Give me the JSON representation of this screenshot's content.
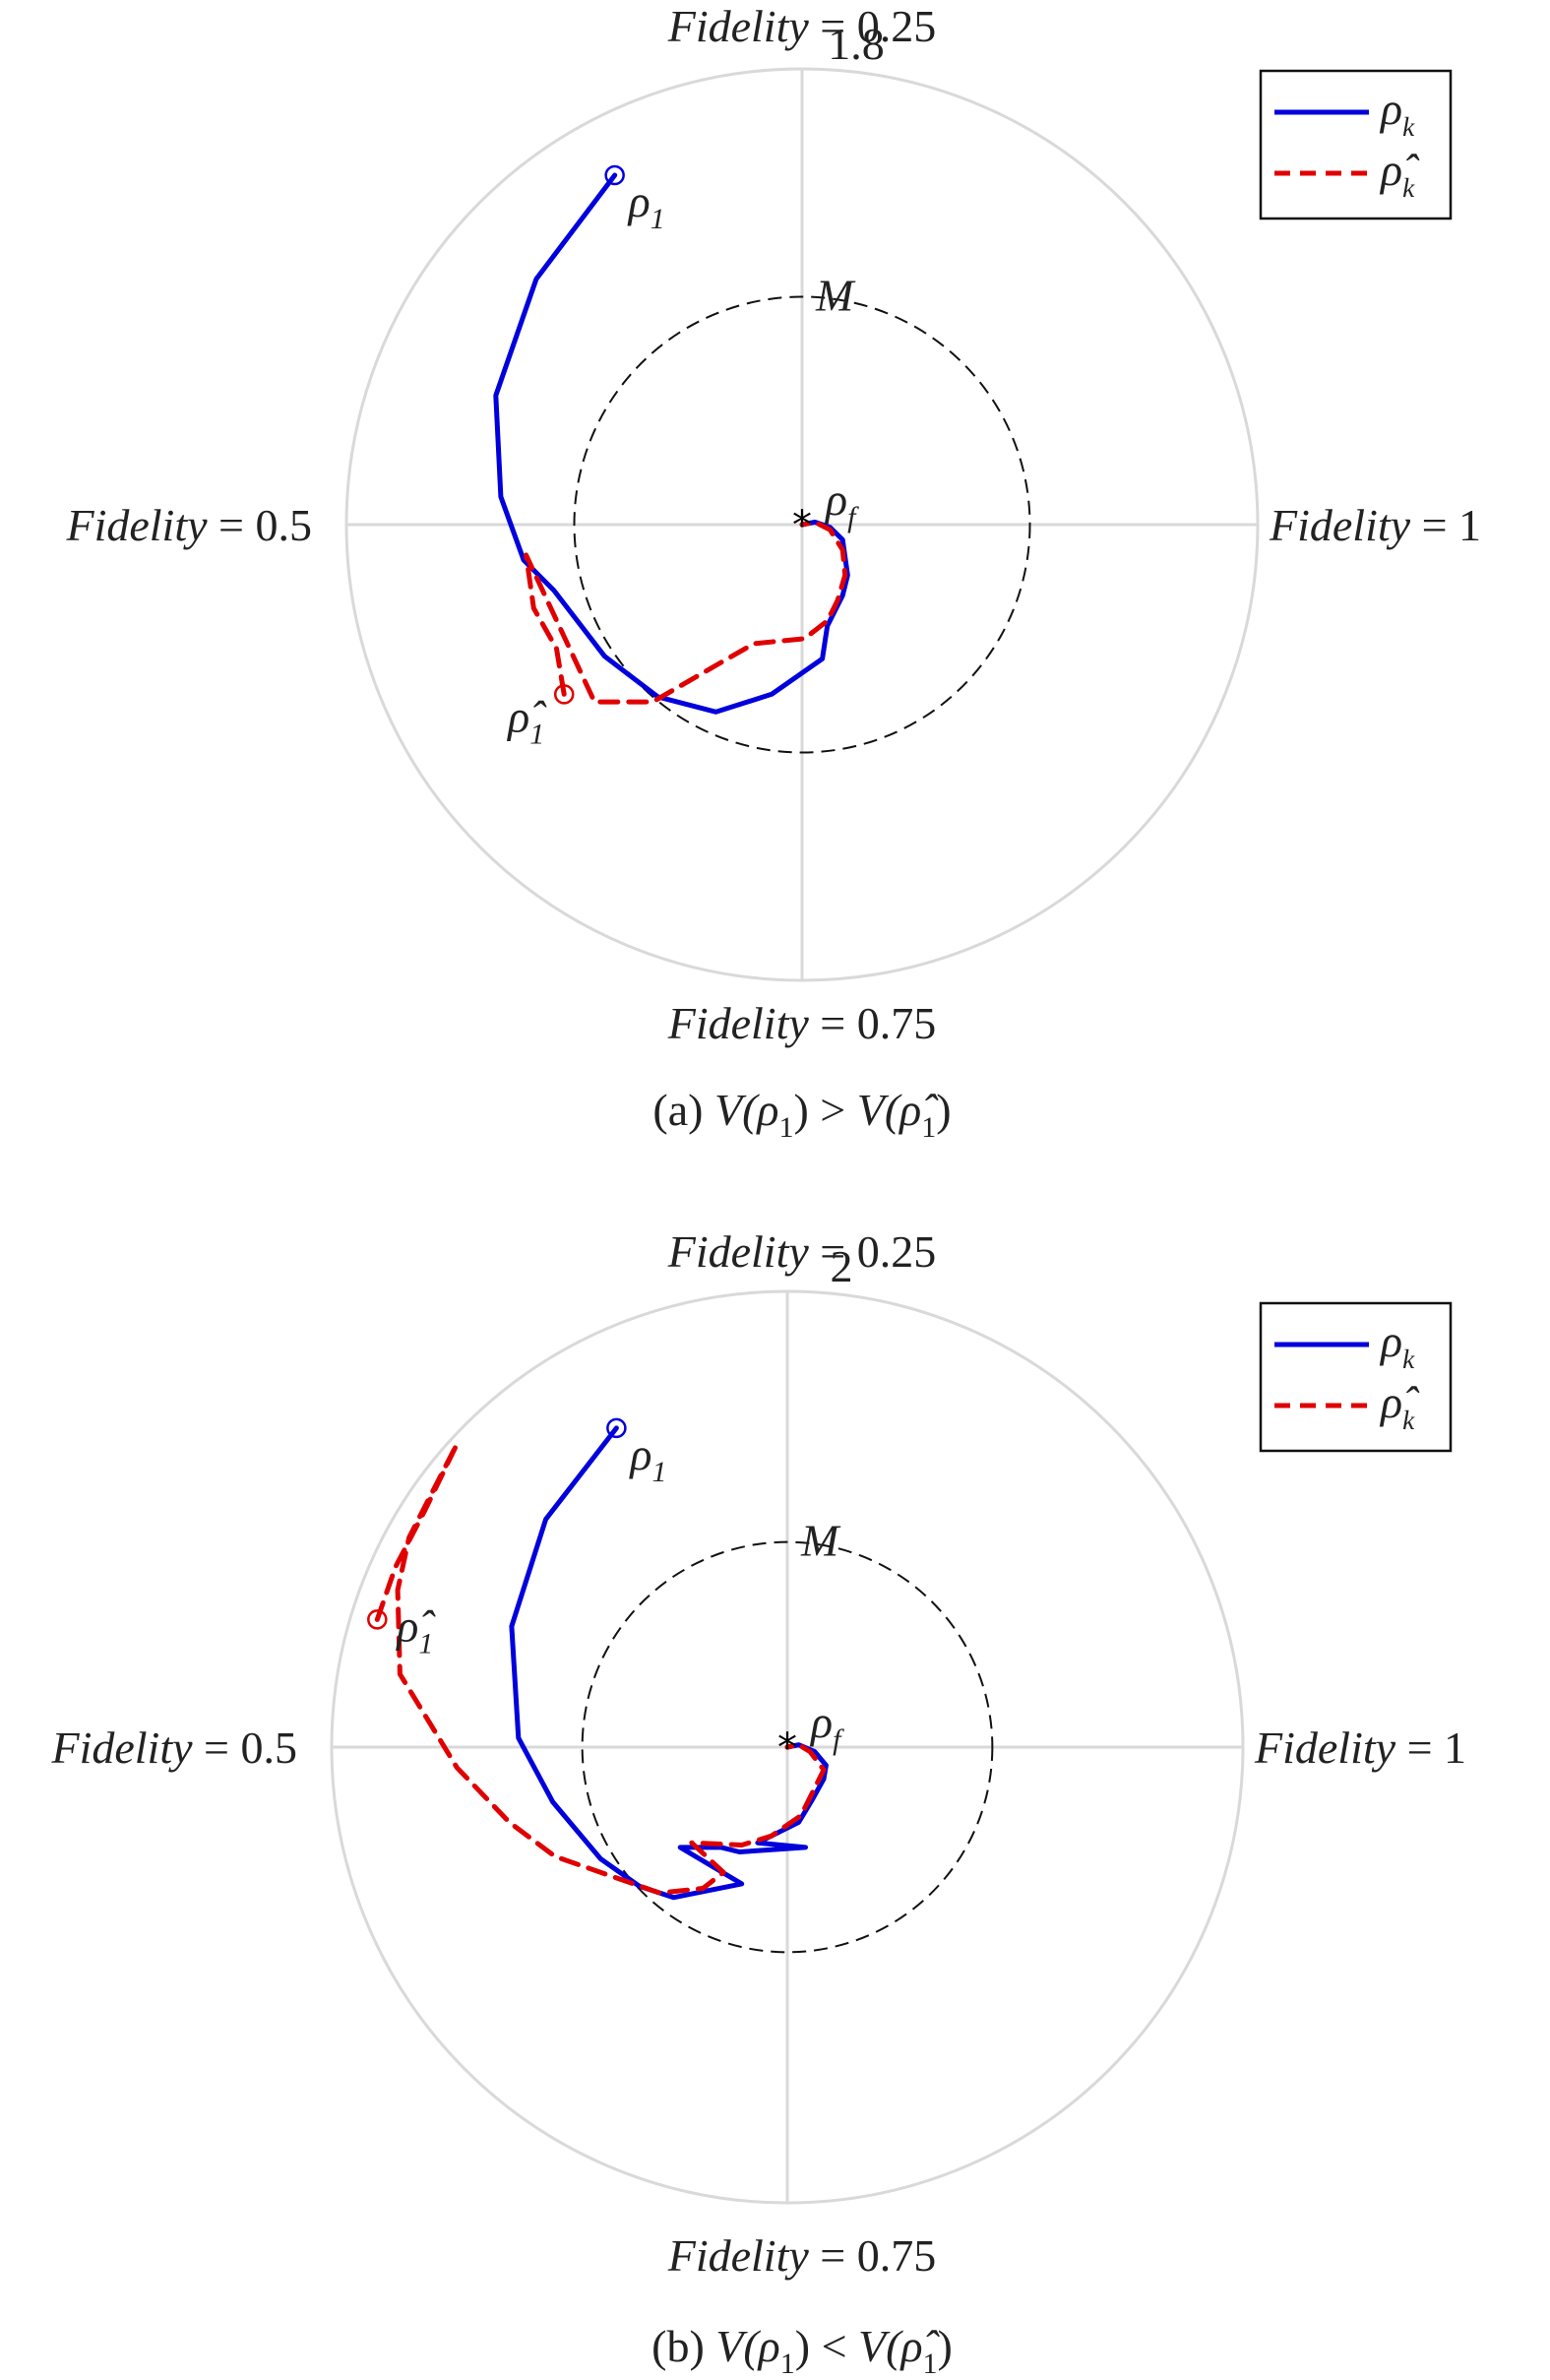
{
  "chart_data": [
    {
      "type": "polar-line",
      "panel_caption": "(a) V(ρ1) > V(ρ̂1)",
      "caption_parts": {
        "pre": "(a) ",
        "lhs": "V(ρ",
        "lhs_sub": "1",
        "mid": ") > ",
        "rhs": "V(ρ̂",
        "rhs_sub": "1",
        "end": ")"
      },
      "radial_max_label": "1.8",
      "radial_max": 1.8,
      "angular_labels": {
        "top": {
          "name": "Fidelity",
          "eq": " = 0.25"
        },
        "left": {
          "name": "Fidelity",
          "eq": " = 0.5"
        },
        "right": {
          "name": "Fidelity",
          "eq": " = 1"
        },
        "bottom": {
          "name": "Fidelity",
          "eq": " = 0.75"
        }
      },
      "M_label": "M",
      "M_radius": 0.9,
      "rho_f_label": {
        "base": "ρ",
        "sub": "f"
      },
      "start_labels": {
        "rho": {
          "base": "ρ",
          "sub": "1"
        },
        "rho_hat": {
          "base": "ρ̂",
          "sub": "1"
        }
      },
      "legend": [
        {
          "base": "ρ",
          "sub": "k",
          "color": "#0000dd",
          "style": "solid"
        },
        {
          "base": "ρ̂",
          "sub": "k",
          "color": "#e00000",
          "style": "dashed"
        }
      ],
      "series": [
        {
          "id": "rho_k",
          "color": "#0000dd",
          "x": [
            -0.74,
            -1.05,
            -1.21,
            -1.19,
            -1.1,
            -0.98,
            -0.78,
            -0.57,
            -0.34,
            -0.12,
            0.08,
            0.1,
            0.16,
            0.18,
            0.16,
            0.11,
            0.05,
            0.0
          ],
          "y": [
            1.38,
            0.97,
            0.51,
            0.11,
            -0.14,
            -0.26,
            -0.52,
            -0.68,
            -0.74,
            -0.67,
            -0.53,
            -0.4,
            -0.28,
            -0.2,
            -0.06,
            -0.01,
            0.01,
            0.0
          ]
        },
        {
          "id": "rho_hat_k",
          "color": "#e00000",
          "x": [
            -0.94,
            -0.97,
            -1.06,
            -1.09,
            -0.82,
            -0.59,
            -0.33,
            -0.19,
            0.01,
            0.1,
            0.14,
            0.17,
            0.16,
            0.11,
            0.05,
            0.0
          ],
          "y": [
            -0.67,
            -0.49,
            -0.33,
            -0.12,
            -0.7,
            -0.7,
            -0.55,
            -0.47,
            -0.45,
            -0.38,
            -0.3,
            -0.2,
            -0.1,
            -0.02,
            0.01,
            0.0
          ]
        }
      ]
    },
    {
      "type": "polar-line",
      "panel_caption": "(b) V(ρ1) < V(ρ̂1)",
      "caption_parts": {
        "pre": "(b) ",
        "lhs": "V(ρ",
        "lhs_sub": "1",
        "mid": ") < ",
        "rhs": "V(ρ̂",
        "rhs_sub": "1",
        "end": ")"
      },
      "radial_max_label": "2",
      "radial_max": 2.0,
      "angular_labels": {
        "top": {
          "name": "Fidelity",
          "eq": " = 0.25"
        },
        "left": {
          "name": "Fidelity",
          "eq": " = 0.5"
        },
        "right": {
          "name": "Fidelity",
          "eq": " = 1"
        },
        "bottom": {
          "name": "Fidelity",
          "eq": " = 0.75"
        }
      },
      "M_label": "M",
      "M_radius": 0.9,
      "rho_f_label": {
        "base": "ρ",
        "sub": "f"
      },
      "start_labels": {
        "rho": {
          "base": "ρ",
          "sub": "1"
        },
        "rho_hat": {
          "base": "ρ̂",
          "sub": "1"
        }
      },
      "legend": [
        {
          "base": "ρ",
          "sub": "k",
          "color": "#0000dd",
          "style": "solid"
        },
        {
          "base": "ρ̂",
          "sub": "k",
          "color": "#e00000",
          "style": "dashed"
        }
      ],
      "series": [
        {
          "id": "rho_k",
          "color": "#0000dd",
          "x": [
            -0.75,
            -1.06,
            -1.21,
            -1.18,
            -1.03,
            -0.82,
            -0.65,
            -0.5,
            -0.2,
            -0.47,
            -0.29,
            -0.21,
            0.08,
            -0.13,
            0.05,
            0.11,
            0.16,
            0.17,
            0.12,
            0.05,
            0.0
          ],
          "y": [
            1.4,
            1.0,
            0.53,
            0.04,
            -0.24,
            -0.49,
            -0.61,
            -0.66,
            -0.6,
            -0.44,
            -0.44,
            -0.46,
            -0.44,
            -0.42,
            -0.33,
            -0.23,
            -0.14,
            -0.08,
            -0.02,
            0.01,
            0.0
          ],
          "start_index": 0
        },
        {
          "id": "rho_hat_k",
          "color": "#e00000",
          "x": [
            -1.8,
            -1.72,
            -1.59,
            -1.45,
            -1.66,
            -1.71,
            -1.7,
            -1.45,
            -1.22,
            -1.02,
            -0.56,
            -0.37,
            -0.28,
            -0.42,
            -0.2,
            -0.07,
            0.06,
            0.12,
            0.16,
            0.1,
            0.05,
            0.0
          ],
          "y": [
            0.56,
            0.79,
            1.04,
            1.33,
            0.92,
            0.69,
            0.32,
            -0.09,
            -0.33,
            -0.48,
            -0.64,
            -0.62,
            -0.55,
            -0.42,
            -0.43,
            -0.39,
            -0.3,
            -0.18,
            -0.1,
            -0.02,
            0.01,
            0.0
          ],
          "start_index": 0
        }
      ]
    }
  ]
}
